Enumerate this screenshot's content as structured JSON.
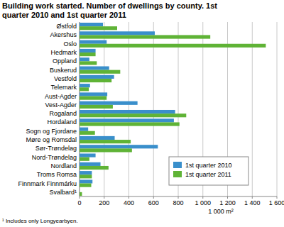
{
  "chart_data": {
    "type": "bar",
    "orientation": "horizontal",
    "title": "Building work started. Number of dwellings by county. 1st quarter 2010 and 1st quarter 2011",
    "xlabel": "1 000 m²",
    "annotations": [
      "¹ Includes only Longyearbyen."
    ],
    "categories": [
      "Østfold",
      "Akershus",
      "Oslo",
      "Hedmark",
      "Oppland",
      "Buskerud",
      "Vestfold",
      "Telemark",
      "Aust-Agder",
      "Vest-Agder",
      "Rogaland",
      "Hordaland",
      "Sogn og Fjordane",
      "Møre og Romsdal",
      "Sør-Trøndelag",
      "Nord-Trøndelag",
      "Nordland",
      "Troms Romsa",
      "Finnmark Finnmárku",
      "Svalbard¹"
    ],
    "series": [
      {
        "name": "1st quarter 2010",
        "color": "#3a8fcb",
        "values": [
          190,
          610,
          220,
          130,
          80,
          240,
          280,
          85,
          225,
          470,
          775,
          765,
          70,
          285,
          635,
          130,
          170,
          100,
          105,
          0
        ]
      },
      {
        "name": "1st quarter 2011",
        "color": "#5fb336",
        "values": [
          305,
          1060,
          1510,
          130,
          140,
          330,
          260,
          75,
          220,
          270,
          865,
          810,
          125,
          415,
          425,
          80,
          235,
          100,
          95,
          20
        ]
      }
    ],
    "xlim": [
      0,
      1600
    ],
    "xticks": [
      0,
      200,
      400,
      600,
      800,
      {
        "value": 1000,
        "label": "1 000"
      },
      {
        "value": 1200,
        "label": "1 200"
      },
      {
        "value": 1400,
        "label": "1 400"
      },
      {
        "value": 1600,
        "label": "1 600"
      }
    ],
    "grid": true,
    "legend": "bottom right"
  }
}
